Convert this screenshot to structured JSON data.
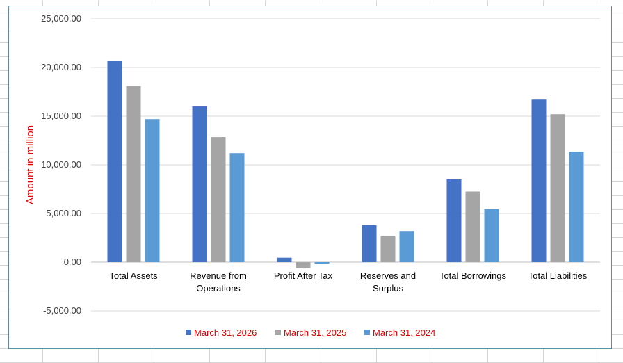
{
  "chart_data": {
    "type": "bar",
    "categories": [
      "Total Assets",
      "Revenue from Operations",
      "Profit After Tax",
      "Reserves and Surplus",
      "Total Borrowings",
      "Total Liabilities"
    ],
    "category_lines": [
      [
        "Total Assets"
      ],
      [
        "Revenue from",
        "Operations"
      ],
      [
        "Profit After Tax"
      ],
      [
        "Reserves and",
        "Surplus"
      ],
      [
        "Total Borrowings"
      ],
      [
        "Total Liabilities"
      ]
    ],
    "series": [
      {
        "name": "March 31, 2026",
        "color": "#4472c4",
        "values": [
          20650,
          16000,
          450,
          3800,
          8500,
          16700
        ]
      },
      {
        "name": "March 31, 2025",
        "color": "#a5a5a5",
        "values": [
          18100,
          12850,
          -600,
          2650,
          7250,
          15200
        ]
      },
      {
        "name": "March 31, 2024",
        "color": "#5b9bd5",
        "values": [
          14700,
          11200,
          -150,
          3200,
          5450,
          11350
        ]
      }
    ],
    "ylabel": "Amount in million",
    "ylim": [
      -5000,
      25000
    ],
    "yticks": [
      -5000,
      0,
      5000,
      10000,
      15000,
      20000,
      25000
    ],
    "ytick_labels": [
      "-5,000.00",
      "0.00",
      "5,000.00",
      "10,000.00",
      "15,000.00",
      "20,000.00",
      "25,000.00"
    ],
    "grid": true,
    "legend_position": "bottom",
    "legend_text_color": "#e00000",
    "ylabel_color": "#e00000"
  }
}
